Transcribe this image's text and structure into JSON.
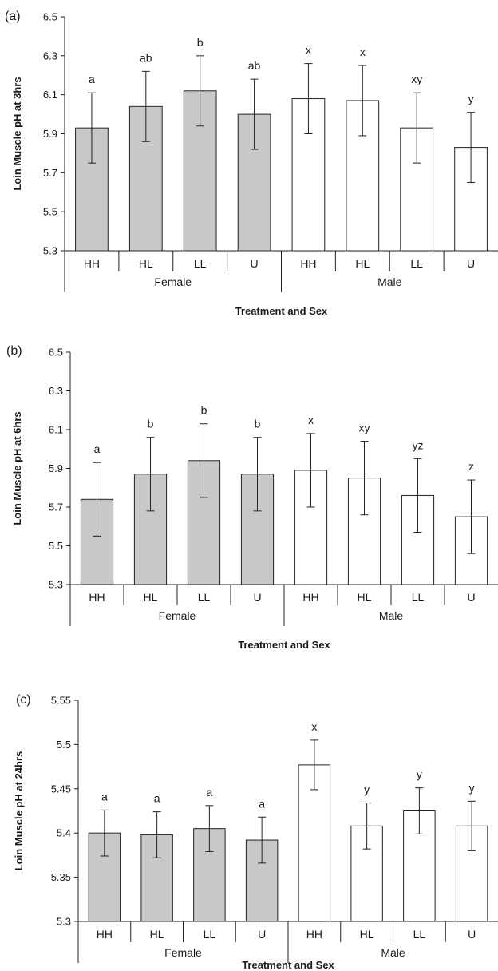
{
  "chart_data": [
    {
      "type": "bar",
      "panel_label": "(a)",
      "ylabel": "Loin Muscle pH at 3hrs",
      "xlabel": "Treatment and Sex",
      "ylim": [
        5.3,
        6.5
      ],
      "yticks": [
        5.3,
        5.5,
        5.7,
        5.9,
        6.1,
        6.3,
        6.5
      ],
      "ytick_labels": [
        "5.3",
        "5.5",
        "5.7",
        "5.9",
        "6.1",
        "6.3",
        "6.5"
      ],
      "groups": [
        "Female",
        "Male"
      ],
      "categories": [
        "HH",
        "HL",
        "LL",
        "U",
        "HH",
        "HL",
        "LL",
        "U"
      ],
      "values": [
        5.93,
        6.04,
        6.12,
        6.0,
        6.08,
        6.07,
        5.93,
        5.83
      ],
      "errors": [
        0.18,
        0.18,
        0.18,
        0.18,
        0.18,
        0.18,
        0.18,
        0.18
      ],
      "annotations": [
        "a",
        "ab",
        "b",
        "ab",
        "x",
        "x",
        "xy",
        "y"
      ],
      "group_colors": {
        "Female": "#c8c8c8",
        "Male": "#ffffff"
      }
    },
    {
      "type": "bar",
      "panel_label": "(b)",
      "ylabel": "Loin Muscle pH at 6hrs",
      "xlabel": "Treatment and Sex",
      "ylim": [
        5.3,
        6.5
      ],
      "yticks": [
        5.3,
        5.5,
        5.7,
        5.9,
        6.1,
        6.3,
        6.5
      ],
      "ytick_labels": [
        "5.3",
        "5.5",
        "5.7",
        "5.9",
        "6.1",
        "6.3",
        "6.5"
      ],
      "groups": [
        "Female",
        "Male"
      ],
      "categories": [
        "HH",
        "HL",
        "LL",
        "U",
        "HH",
        "HL",
        "LL",
        "U"
      ],
      "values": [
        5.74,
        5.87,
        5.94,
        5.87,
        5.89,
        5.85,
        5.76,
        5.65
      ],
      "errors": [
        0.19,
        0.19,
        0.19,
        0.19,
        0.19,
        0.19,
        0.19,
        0.19
      ],
      "annotations": [
        "a",
        "b",
        "b",
        "b",
        "x",
        "xy",
        "yz",
        "z"
      ],
      "group_colors": {
        "Female": "#c8c8c8",
        "Male": "#ffffff"
      }
    },
    {
      "type": "bar",
      "panel_label": "(c)",
      "ylabel": "Loin Muscle pH at 24hrs",
      "xlabel": "Treatment and Sex",
      "ylim": [
        5.3,
        5.55
      ],
      "yticks": [
        5.3,
        5.35,
        5.4,
        5.45,
        5.5,
        5.55
      ],
      "ytick_labels": [
        "5.3",
        "5.35",
        "5.4",
        "5.45",
        "5.5",
        "5.55"
      ],
      "groups": [
        "Female",
        "Male"
      ],
      "categories": [
        "HH",
        "HL",
        "LL",
        "U",
        "HH",
        "HL",
        "LL",
        "U"
      ],
      "values": [
        5.4,
        5.398,
        5.405,
        5.392,
        5.477,
        5.408,
        5.425,
        5.408
      ],
      "errors": [
        0.026,
        0.026,
        0.026,
        0.026,
        0.028,
        0.026,
        0.026,
        0.028
      ],
      "annotations": [
        "a",
        "a",
        "a",
        "a",
        "x",
        "y",
        "y",
        "y"
      ],
      "group_colors": {
        "Female": "#c8c8c8",
        "Male": "#ffffff"
      }
    }
  ]
}
